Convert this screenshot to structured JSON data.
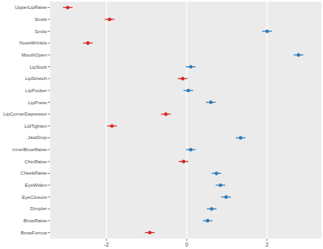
{
  "chart_data": {
    "type": "dot",
    "orientation": "horizontal",
    "categories": [
      "UpperLipRaise",
      "Smirk",
      "Smile",
      "NoseWrinkle",
      "MouthOpen",
      "LipSuck",
      "LipStretch",
      "LipPucker",
      "LipPress",
      "LipCornerDepressor",
      "LidTighten",
      "JawDrop",
      "InnerBrowRaise",
      "ChinRaise",
      "CheekRaise",
      "EyeWiden",
      "EyeClosure",
      "Dimpler",
      "BrowRaise",
      "BrowFurrow"
    ],
    "values": [
      -2.96,
      -1.92,
      2.0,
      -2.46,
      2.78,
      0.1,
      -0.1,
      0.04,
      0.6,
      -0.52,
      -1.86,
      1.34,
      0.1,
      -0.08,
      0.74,
      0.84,
      0.98,
      0.62,
      0.52,
      -0.92
    ],
    "errors": [
      0.12,
      0.12,
      0.12,
      0.12,
      0.12,
      0.12,
      0.12,
      0.12,
      0.12,
      0.12,
      0.12,
      0.12,
      0.12,
      0.12,
      0.12,
      0.12,
      0.12,
      0.12,
      0.12,
      0.12
    ],
    "colors": [
      "#d62728",
      "#d62728",
      "#2b7bba",
      "#d62728",
      "#2b7bba",
      "#2b7bba",
      "#d62728",
      "#2b7bba",
      "#2b7bba",
      "#d62728",
      "#d62728",
      "#2b7bba",
      "#2b7bba",
      "#d62728",
      "#2b7bba",
      "#2b7bba",
      "#2b7bba",
      "#2b7bba",
      "#2b7bba",
      "#d62728"
    ],
    "xlim": [
      -3.4,
      3.35
    ],
    "xticks": [
      -2,
      0,
      2
    ],
    "grid": true
  }
}
